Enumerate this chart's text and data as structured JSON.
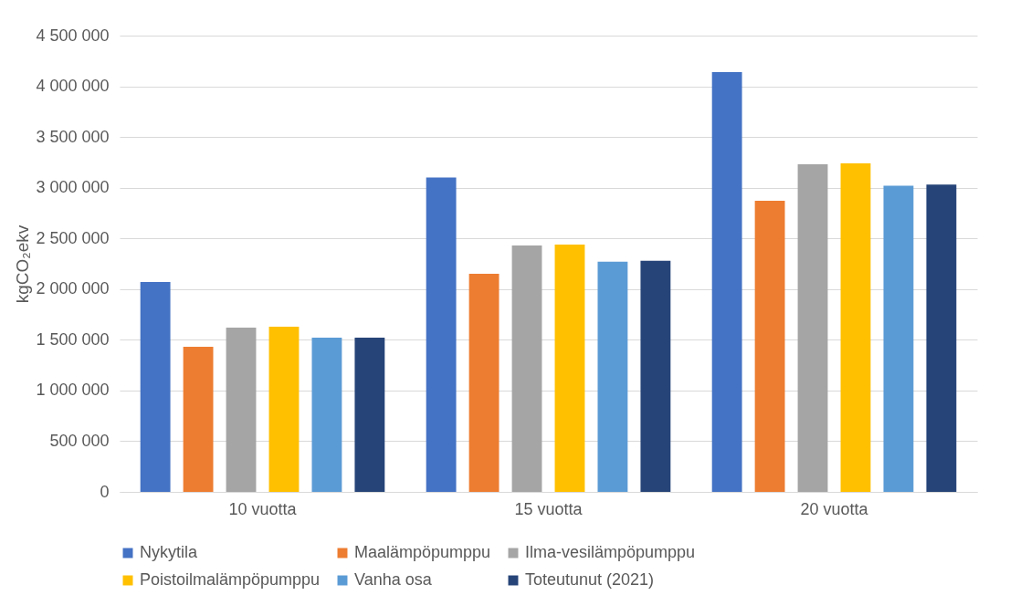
{
  "chart_data": {
    "type": "bar",
    "ylabel": "kgCO₂ekv",
    "categories": [
      "10 vuotta",
      "15 vuotta",
      "20 vuotta"
    ],
    "series": [
      {
        "name": "Nykytila",
        "color": "#4472c4",
        "values": [
          2070000,
          3100000,
          4140000
        ]
      },
      {
        "name": "Maalämpöpumppu",
        "color": "#ed7d31",
        "values": [
          1430000,
          2150000,
          2870000
        ]
      },
      {
        "name": "Ilma-vesilämpöpumppu",
        "color": "#a5a5a5",
        "values": [
          1620000,
          2430000,
          3230000
        ]
      },
      {
        "name": "Poistoilmalämpöpumppu",
        "color": "#ffc000",
        "values": [
          1630000,
          2440000,
          3240000
        ]
      },
      {
        "name": "Vanha osa",
        "color": "#5b9bd5",
        "values": [
          1520000,
          2270000,
          3020000
        ]
      },
      {
        "name": "Toteutunut (2021)",
        "color": "#264478",
        "values": [
          1520000,
          2280000,
          3030000
        ]
      }
    ],
    "ylim": [
      0,
      4500000
    ],
    "yticks": [
      0,
      {
        "value": 500000,
        "label": "500 000"
      },
      {
        "value": 1000000,
        "label": "1 000 000"
      },
      {
        "value": 1500000,
        "label": "1 500 000"
      },
      {
        "value": 2000000,
        "label": "2 000 000"
      },
      {
        "value": 2500000,
        "label": "2 500 000"
      },
      {
        "value": 3000000,
        "label": "3 000 000"
      },
      {
        "value": 3500000,
        "label": "3 500 000"
      },
      {
        "value": 4000000,
        "label": "4 000 000"
      },
      {
        "value": 4500000,
        "label": "4 500 000"
      }
    ],
    "grid": "y",
    "legend": "bottom"
  }
}
